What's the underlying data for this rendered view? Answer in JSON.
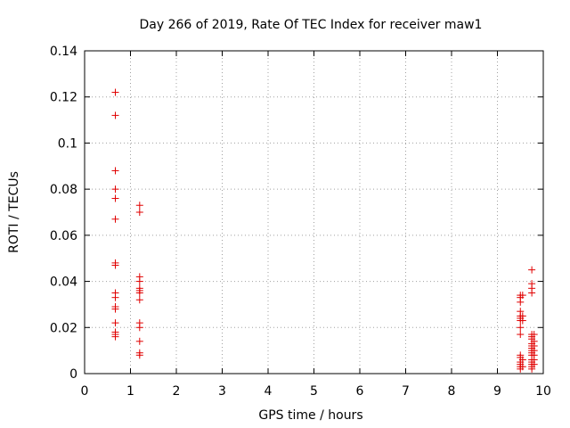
{
  "chart_data": {
    "type": "scatter",
    "title": "Day 266 of 2019, Rate Of TEC Index for receiver maw1",
    "xlabel": "GPS time / hours",
    "ylabel": "ROTI / TECUs",
    "xlim": [
      0,
      10
    ],
    "ylim": [
      0,
      0.14
    ],
    "xticks": [
      "0",
      "1",
      "2",
      "3",
      "4",
      "5",
      "6",
      "7",
      "8",
      "9",
      "10"
    ],
    "yticks": [
      "0",
      "0.02",
      "0.04",
      "0.06",
      "0.08",
      "0.1",
      "0.12",
      "0.14"
    ],
    "grid": true,
    "marker": "plus",
    "color": "#e00000",
    "series": [
      {
        "name": "ROTI",
        "points": [
          [
            0.67,
            0.122
          ],
          [
            0.67,
            0.112
          ],
          [
            0.67,
            0.088
          ],
          [
            0.67,
            0.08
          ],
          [
            0.67,
            0.076
          ],
          [
            0.67,
            0.067
          ],
          [
            0.67,
            0.048
          ],
          [
            0.67,
            0.047
          ],
          [
            0.67,
            0.035
          ],
          [
            0.67,
            0.033
          ],
          [
            0.67,
            0.029
          ],
          [
            0.67,
            0.028
          ],
          [
            0.67,
            0.022
          ],
          [
            0.67,
            0.018
          ],
          [
            0.67,
            0.017
          ],
          [
            0.67,
            0.016
          ],
          [
            1.2,
            0.073
          ],
          [
            1.2,
            0.07
          ],
          [
            1.2,
            0.042
          ],
          [
            1.2,
            0.04
          ],
          [
            1.2,
            0.037
          ],
          [
            1.2,
            0.036
          ],
          [
            1.2,
            0.035
          ],
          [
            1.2,
            0.032
          ],
          [
            1.2,
            0.022
          ],
          [
            1.2,
            0.02
          ],
          [
            1.2,
            0.014
          ],
          [
            1.2,
            0.009
          ],
          [
            1.2,
            0.008
          ],
          [
            9.5,
            0.034
          ],
          [
            9.5,
            0.033
          ],
          [
            9.5,
            0.031
          ],
          [
            9.5,
            0.027
          ],
          [
            9.5,
            0.025
          ],
          [
            9.5,
            0.024
          ],
          [
            9.5,
            0.023
          ],
          [
            9.5,
            0.02
          ],
          [
            9.5,
            0.017
          ],
          [
            9.5,
            0.008
          ],
          [
            9.5,
            0.007
          ],
          [
            9.5,
            0.005
          ],
          [
            9.5,
            0.004
          ],
          [
            9.5,
            0.003
          ],
          [
            9.5,
            0.002
          ],
          [
            9.55,
            0.034
          ],
          [
            9.55,
            0.025
          ],
          [
            9.55,
            0.023
          ],
          [
            9.55,
            0.006
          ],
          [
            9.55,
            0.003
          ],
          [
            9.75,
            0.045
          ],
          [
            9.75,
            0.039
          ],
          [
            9.75,
            0.037
          ],
          [
            9.75,
            0.035
          ],
          [
            9.75,
            0.017
          ],
          [
            9.75,
            0.016
          ],
          [
            9.75,
            0.015
          ],
          [
            9.75,
            0.013
          ],
          [
            9.75,
            0.012
          ],
          [
            9.75,
            0.011
          ],
          [
            9.75,
            0.01
          ],
          [
            9.75,
            0.009
          ],
          [
            9.75,
            0.008
          ],
          [
            9.75,
            0.006
          ],
          [
            9.75,
            0.005
          ],
          [
            9.75,
            0.004
          ],
          [
            9.75,
            0.003
          ],
          [
            9.75,
            0.002
          ],
          [
            9.8,
            0.017
          ],
          [
            9.8,
            0.014
          ],
          [
            9.8,
            0.012
          ],
          [
            9.8,
            0.01
          ],
          [
            9.8,
            0.008
          ],
          [
            9.8,
            0.006
          ],
          [
            9.8,
            0.004
          ]
        ]
      }
    ]
  }
}
